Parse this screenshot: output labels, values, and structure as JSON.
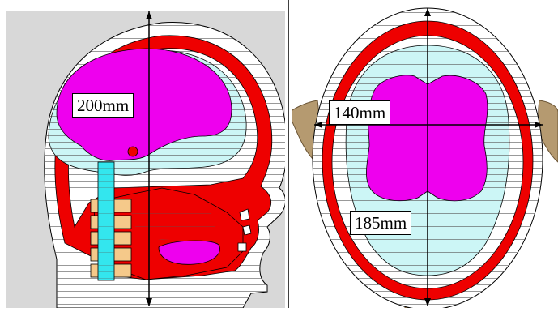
{
  "panels": [
    {
      "name": "side-view",
      "label": "200mm"
    },
    {
      "name": "top-view",
      "labels": [
        "140mm",
        "185mm"
      ]
    }
  ],
  "colors": {
    "skin_line": "#000000",
    "muscle": "#ee0000",
    "csf": "#ccf6f6",
    "brain": "#ee00ee",
    "spine": "#33e6ee",
    "bone": "#f5c98a",
    "ear": "#b59a70",
    "background": "#ffffff",
    "panel_bg": "#d8d8d8"
  }
}
